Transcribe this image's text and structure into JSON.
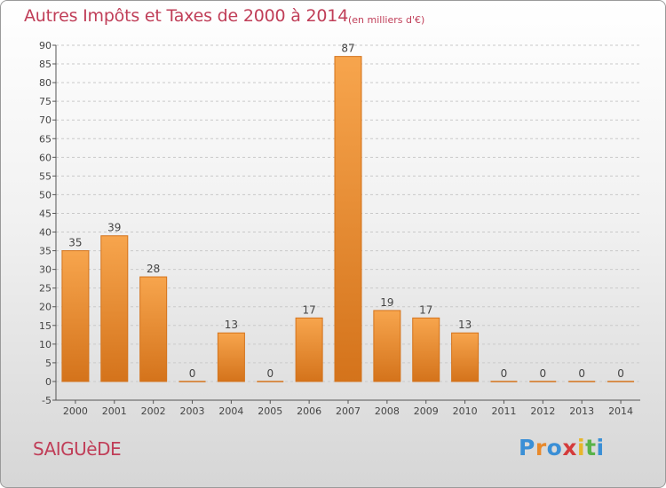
{
  "header": {
    "title": "Autres Impôts et Taxes de 2000 à 2014",
    "subtitle": "(en milliers d'€)"
  },
  "footer": {
    "city": "SAIGUèDE",
    "logo": {
      "letters": [
        "P",
        "r",
        "o",
        "x",
        "i",
        "t",
        "i"
      ],
      "colors": [
        "#3a8fd6",
        "#e8892b",
        "#3a8fd6",
        "#d43b3b",
        "#e8b62b",
        "#59b34a",
        "#3a8fd6"
      ]
    }
  },
  "colors": {
    "bar_light": "#f7a54d",
    "bar_dark": "#d4731b",
    "axis": "#555555",
    "grid": "#c9c9c9",
    "text": "#444444"
  },
  "chart_data": {
    "type": "bar",
    "categories": [
      "2000",
      "2001",
      "2002",
      "2003",
      "2004",
      "2005",
      "2006",
      "2007",
      "2008",
      "2009",
      "2010",
      "2011",
      "2012",
      "2013",
      "2014"
    ],
    "values": [
      35,
      39,
      28,
      0,
      13,
      0,
      17,
      87,
      19,
      17,
      13,
      0,
      0,
      0,
      0
    ],
    "ylim": [
      -5,
      90
    ],
    "yticks": [
      -5,
      0,
      5,
      10,
      15,
      20,
      25,
      30,
      35,
      40,
      45,
      50,
      55,
      60,
      65,
      70,
      75,
      80,
      85,
      90
    ],
    "grid": true,
    "legend": "none"
  }
}
